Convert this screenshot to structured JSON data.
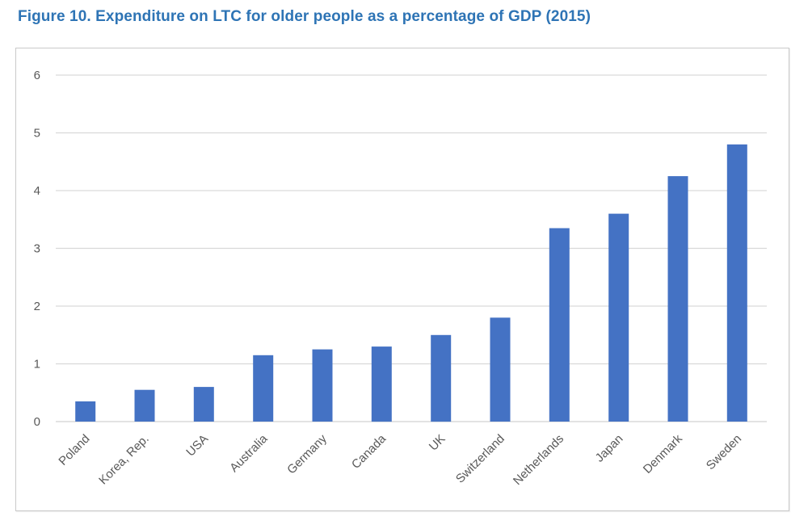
{
  "title": "Figure 10. Expenditure on LTC for older people as a percentage of GDP (2015)",
  "colors": {
    "title_text": "#2E74B5",
    "bar": "#4472C4",
    "gridline": "#D9D9D9",
    "axis_line": "#D2D2D2",
    "axis_text": "#595959",
    "frame_border": "#C9C9C9",
    "background": "#FFFFFF"
  },
  "chart_data": {
    "type": "bar",
    "title": "Figure 10. Expenditure on LTC for older people as a percentage of GDP (2015)",
    "categories": [
      "Poland",
      "Korea, Rep.",
      "USA",
      "Australia",
      "Germany",
      "Canada",
      "UK",
      "Switzerland",
      "Netherlands",
      "Japan",
      "Denmark",
      "Sweden"
    ],
    "values": [
      0.35,
      0.55,
      0.6,
      1.15,
      1.25,
      1.3,
      1.5,
      1.8,
      3.35,
      3.6,
      4.25,
      4.8
    ],
    "xlabel": "",
    "ylabel": "",
    "ylim": [
      0,
      6
    ],
    "yticks": [
      0,
      1,
      2,
      3,
      4,
      5,
      6
    ],
    "grid": true,
    "legend": "none",
    "bar_color": "#4472C4",
    "x_label_rotation_deg": -45
  }
}
